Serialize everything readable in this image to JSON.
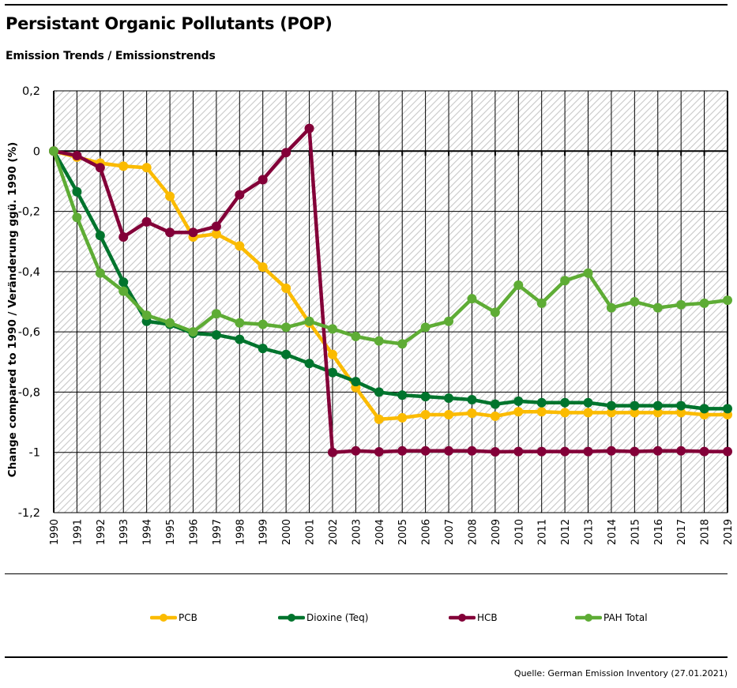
{
  "header": {
    "title": "Persistant Organic Pollutants (POP)",
    "subtitle": "Emission Trends / Emissionstrends"
  },
  "footer": {
    "source": "Quelle: German Emission Inventory (27.01.2021)"
  },
  "chart_data": {
    "type": "line",
    "title": "Persistant Organic Pollutants (POP)",
    "subtitle": "Emission Trends / Emissionstrends",
    "xlabel": "",
    "ylabel": "Change compared to 1990 / Veränderung ggü. 1990 (%)",
    "ylim": [
      -1.2,
      0.2
    ],
    "yticks": [
      0.2,
      0,
      -0.2,
      -0.4,
      -0.6,
      -0.8,
      -1,
      -1.2
    ],
    "ytick_labels": [
      "0,2",
      "0",
      "-0,2",
      "-0,4",
      "-0,6",
      "-0,8",
      "-1",
      "-1,2"
    ],
    "grid": true,
    "legend_position": "bottom",
    "x": [
      "1990",
      "1991",
      "1992",
      "1993",
      "1994",
      "1995",
      "1996",
      "1997",
      "1998",
      "1999",
      "2000",
      "2001",
      "2002",
      "2003",
      "2004",
      "2005",
      "2006",
      "2007",
      "2008",
      "2009",
      "2010",
      "2011",
      "2012",
      "2013",
      "2014",
      "2015",
      "2016",
      "2017",
      "2018",
      "2019"
    ],
    "series": [
      {
        "name": "PCB",
        "color": "#fbbb00",
        "values": [
          0,
          -0.02,
          -0.04,
          -0.05,
          -0.055,
          -0.15,
          -0.285,
          -0.275,
          -0.315,
          -0.385,
          -0.455,
          -0.57,
          -0.675,
          -0.785,
          -0.89,
          -0.885,
          -0.875,
          -0.875,
          -0.87,
          -0.88,
          -0.865,
          -0.865,
          -0.868,
          -0.868,
          -0.868,
          -0.868,
          -0.868,
          -0.868,
          -0.875,
          -0.875
        ]
      },
      {
        "name": "Dioxine (Teq)",
        "color": "#00742d",
        "values": [
          0,
          -0.135,
          -0.28,
          -0.435,
          -0.565,
          -0.575,
          -0.605,
          -0.61,
          -0.625,
          -0.655,
          -0.675,
          -0.705,
          -0.735,
          -0.765,
          -0.8,
          -0.81,
          -0.815,
          -0.82,
          -0.825,
          -0.84,
          -0.83,
          -0.835,
          -0.835,
          -0.835,
          -0.845,
          -0.845,
          -0.845,
          -0.845,
          -0.855,
          -0.855
        ]
      },
      {
        "name": "HCB",
        "color": "#830038",
        "values": [
          0,
          -0.015,
          -0.055,
          -0.285,
          -0.235,
          -0.27,
          -0.27,
          -0.25,
          -0.145,
          -0.095,
          -0.005,
          0.075,
          -1.0,
          -0.995,
          -0.998,
          -0.995,
          -0.995,
          -0.995,
          -0.995,
          -0.998,
          -0.997,
          -0.997,
          -0.997,
          -0.997,
          -0.995,
          -0.997,
          -0.995,
          -0.995,
          -0.997,
          -0.997
        ]
      },
      {
        "name": "PAH Total",
        "color": "#5eac35",
        "values": [
          0,
          -0.22,
          -0.405,
          -0.465,
          -0.545,
          -0.57,
          -0.6,
          -0.54,
          -0.57,
          -0.575,
          -0.585,
          -0.565,
          -0.59,
          -0.615,
          -0.63,
          -0.64,
          -0.585,
          -0.565,
          -0.49,
          -0.535,
          -0.445,
          -0.505,
          -0.43,
          -0.405,
          -0.52,
          -0.5,
          -0.52,
          -0.51,
          -0.505,
          -0.495
        ]
      }
    ]
  }
}
